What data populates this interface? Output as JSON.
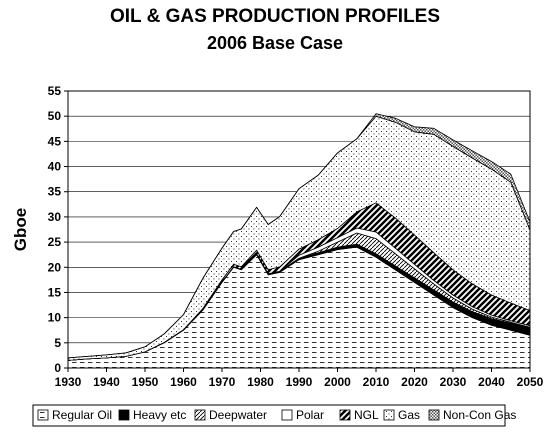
{
  "chart_data": {
    "type": "area",
    "stacked": true,
    "title": "OIL & GAS PRODUCTION PROFILES",
    "subtitle": "2006 Base Case",
    "xlabel": "",
    "ylabel": "Gboe",
    "xlim": [
      1930,
      2050
    ],
    "ylim": [
      0,
      55
    ],
    "xticks": [
      1930,
      1940,
      1950,
      1960,
      1970,
      1980,
      1990,
      2000,
      2010,
      2020,
      2030,
      2040,
      2050
    ],
    "yticks": [
      0,
      5,
      10,
      15,
      20,
      25,
      30,
      35,
      40,
      45,
      50,
      55
    ],
    "grid": "horizontal",
    "legend_position": "bottom",
    "x": [
      1930,
      1935,
      1940,
      1945,
      1950,
      1955,
      1960,
      1965,
      1970,
      1973,
      1975,
      1979,
      1982,
      1985,
      1990,
      1995,
      2000,
      2005,
      2010,
      2015,
      2020,
      2025,
      2030,
      2035,
      2040,
      2045,
      2050
    ],
    "series": [
      {
        "name": "Regular Oil",
        "pattern": "dashes",
        "values": [
          1.5,
          1.8,
          2.0,
          2.3,
          3.2,
          5.0,
          7.5,
          11.5,
          17.0,
          20.0,
          19.5,
          22.5,
          18.5,
          19.0,
          21.5,
          22.5,
          23.5,
          24.0,
          22.0,
          19.5,
          17.0,
          14.5,
          12.0,
          10.0,
          8.5,
          7.5,
          6.5
        ]
      },
      {
        "name": "Heavy etc",
        "pattern": "solid",
        "values": [
          0,
          0,
          0,
          0,
          0,
          0.1,
          0.1,
          0.1,
          0.1,
          0.1,
          0.1,
          0.2,
          0.2,
          0.2,
          0.3,
          0.4,
          0.5,
          0.6,
          0.7,
          0.8,
          0.9,
          1.0,
          1.1,
          1.2,
          1.3,
          1.4,
          1.5
        ]
      },
      {
        "name": "Deepwater",
        "pattern": "hatch",
        "values": [
          0,
          0,
          0,
          0,
          0,
          0,
          0,
          0,
          0,
          0,
          0,
          0,
          0,
          0,
          0,
          0.3,
          1.0,
          2.2,
          3.0,
          2.4,
          1.8,
          1.2,
          0.8,
          0.5,
          0.3,
          0.2,
          0.1
        ]
      },
      {
        "name": "Polar",
        "pattern": "blank",
        "values": [
          0,
          0,
          0,
          0,
          0,
          0,
          0,
          0,
          0,
          0,
          0,
          0,
          0,
          0,
          0.6,
          0.8,
          0.9,
          1.0,
          1.3,
          1.1,
          0.9,
          0.7,
          0.6,
          0.5,
          0.4,
          0.3,
          0.3
        ]
      },
      {
        "name": "NGL",
        "pattern": "stripes",
        "values": [
          0,
          0,
          0,
          0,
          0,
          0,
          0,
          0.2,
          0.4,
          0.5,
          0.5,
          0.7,
          0.8,
          0.9,
          1.2,
          1.5,
          1.8,
          3.2,
          5.8,
          6.0,
          5.8,
          5.5,
          5.0,
          4.5,
          4.0,
          3.5,
          3.0
        ]
      },
      {
        "name": "Gas",
        "pattern": "dots",
        "values": [
          0.5,
          0.5,
          0.6,
          0.7,
          1.0,
          1.7,
          3.0,
          6.0,
          6.3,
          6.5,
          7.5,
          8.5,
          9.0,
          10.0,
          12.0,
          12.8,
          15.0,
          14.5,
          17.2,
          19.0,
          20.5,
          23.5,
          24.5,
          25.0,
          25.0,
          24.0,
          16.0
        ]
      },
      {
        "name": "Non-Con Gas",
        "pattern": "checker",
        "values": [
          0,
          0,
          0,
          0,
          0,
          0,
          0,
          0,
          0,
          0,
          0,
          0,
          0,
          0,
          0,
          0,
          0,
          0,
          0.5,
          0.8,
          1.0,
          1.2,
          1.3,
          1.4,
          1.5,
          1.6,
          1.6
        ]
      }
    ]
  }
}
